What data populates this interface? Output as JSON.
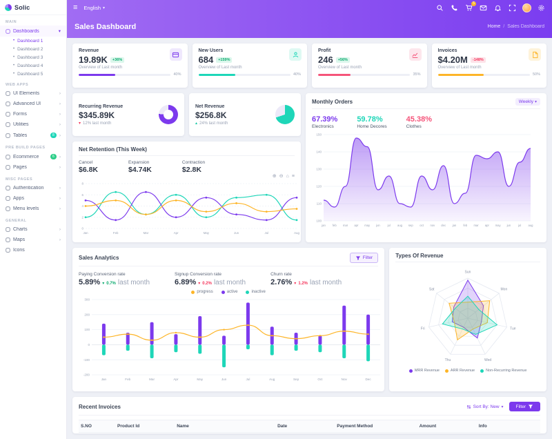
{
  "app": {
    "logo": "Solic"
  },
  "header": {
    "language": "English",
    "cart_badge": "5",
    "page_title": "Sales Dashboard",
    "breadcrumb_home": "Home",
    "breadcrumb_current": "Sales Dashboard"
  },
  "sidebar": {
    "groups": [
      {
        "heading": "MAIN",
        "items": [
          {
            "label": "Dashboards",
            "active": true,
            "expanded": true,
            "active_child": 0,
            "children": [
              "Dashboard 1",
              "Dashboard 2",
              "Dashboard 3",
              "Dashboard 4",
              "Dashboard 5"
            ]
          }
        ]
      },
      {
        "heading": "WEB APPS",
        "items": [
          {
            "label": "UI Elements"
          },
          {
            "label": "Advanced UI"
          },
          {
            "label": "Forms"
          },
          {
            "label": "Utilities"
          },
          {
            "label": "Tables",
            "badge": "8",
            "badge_color": "#1ed6b8"
          }
        ]
      },
      {
        "heading": "PRE BUILD PAGES",
        "items": [
          {
            "label": "Ecommerce",
            "badge": "6",
            "badge_color": "#2dce89"
          },
          {
            "label": "Pages"
          }
        ]
      },
      {
        "heading": "MISC PAGES",
        "items": [
          {
            "label": "Authentication"
          },
          {
            "label": "Apps"
          },
          {
            "label": "Menu levels"
          }
        ]
      },
      {
        "heading": "GENERAL",
        "items": [
          {
            "label": "Charts"
          },
          {
            "label": "Maps"
          },
          {
            "label": "Icons",
            "chevron": false
          }
        ]
      }
    ]
  },
  "stat_cards": [
    {
      "title": "Revenue",
      "value": "19.89K",
      "badge": "+36%",
      "badge_type": "success",
      "subtitle": "Overview of Last month",
      "progress": 40,
      "progress_label": "40%",
      "accent": "#7c3aed",
      "accent_bg": "#efe8fd",
      "icon": "revenue"
    },
    {
      "title": "New Users",
      "value": "684",
      "badge": "+159%",
      "badge_type": "success",
      "subtitle": "Overview of Last month",
      "progress": 40,
      "progress_label": "40%",
      "accent": "#1ed6b8",
      "accent_bg": "#def9f3",
      "icon": "users"
    },
    {
      "title": "Profit",
      "value": "246",
      "badge": "+56%",
      "badge_type": "success",
      "subtitle": "Overview of Last month",
      "progress": 35,
      "progress_label": "35%",
      "accent": "#f5547a",
      "accent_bg": "#fde6ec",
      "icon": "profit"
    },
    {
      "title": "Invoices",
      "value": "$4.20M",
      "badge": "-148%",
      "badge_type": "danger",
      "subtitle": "Overview of Last month",
      "progress": 50,
      "progress_label": "50%",
      "accent": "#fdb528",
      "accent_bg": "#fef3da",
      "icon": "invoice"
    }
  ],
  "revenue_cards": [
    {
      "title": "Recurring Revenue",
      "value": "$345.89K",
      "delta_dir": "down",
      "delta_color": "#f5365c",
      "delta_text": "12% last month",
      "percent": 76,
      "color": "#7c3aed",
      "hole": true
    },
    {
      "title": "Net Revenue",
      "value": "$256.8K",
      "delta_dir": "up",
      "delta_color": "#17c8a5",
      "delta_text": "24% last month",
      "percent": 70,
      "color": "#1ed6b8",
      "hole": false
    }
  ],
  "monthly_orders": {
    "title": "Monthly Orders",
    "range_label": "Weekly",
    "stats": [
      {
        "value": "67.39%",
        "label": "Electronics",
        "color": "#7c3aed"
      },
      {
        "value": "59.78%",
        "label": "Home Decores",
        "color": "#1ed6b8"
      },
      {
        "value": "45.38%",
        "label": "Clothes",
        "color": "#f5547a"
      }
    ],
    "chart_data": {
      "type": "area",
      "x": [
        "jan",
        "feb",
        "mar",
        "apr",
        "may",
        "jun",
        "jul",
        "aug",
        "sep",
        "oct",
        "nov",
        "dec",
        "jan",
        "feb",
        "mar",
        "apr",
        "may",
        "jun",
        "jul",
        "aug"
      ],
      "values": [
        112,
        108,
        120,
        148,
        143,
        118,
        126,
        110,
        108,
        126,
        118,
        132,
        110,
        116,
        138,
        136,
        140,
        120,
        134,
        142
      ],
      "ylim": [
        100,
        150
      ],
      "ticks": [
        100,
        110,
        120,
        130,
        140,
        150
      ],
      "color": "#7c3aed"
    }
  },
  "net_retention": {
    "title": "Net Retention (This Week)",
    "stats": [
      {
        "label": "Cancel",
        "value": "$6.8K"
      },
      {
        "label": "Expansion",
        "value": "$4.74K"
      },
      {
        "label": "Contraction",
        "value": "$2.8K"
      }
    ],
    "toolbar": [
      {
        "name": "zoom-in",
        "glyph": "⊕"
      },
      {
        "name": "zoom-out",
        "glyph": "⊖"
      },
      {
        "name": "home",
        "glyph": "⌂"
      },
      {
        "name": "menu",
        "glyph": "≡"
      }
    ],
    "chart_data": {
      "type": "line",
      "x": [
        "Jan",
        "Feb",
        "Mar",
        "Apr",
        "May",
        "Jun",
        "Jul",
        "Aug"
      ],
      "ylim": [
        0,
        8
      ],
      "ticks": [
        0,
        2,
        4,
        6,
        8
      ],
      "series": [
        {
          "name": "Cancel",
          "color": "#1ed6b8",
          "values": [
            2,
            6.5,
            2.5,
            6,
            2,
            5.5,
            6,
            1.5
          ]
        },
        {
          "name": "Expansion",
          "color": "#7c3aed",
          "values": [
            5,
            1.5,
            6.5,
            2,
            5.5,
            2.5,
            1.5,
            5.5
          ]
        },
        {
          "name": "Contraction",
          "color": "#fdb528",
          "values": [
            4,
            5,
            2.5,
            5,
            3,
            4.5,
            3,
            3.5
          ]
        }
      ]
    }
  },
  "sales_analytics": {
    "title": "Sales Analytics",
    "filter_label": "Filter",
    "stats": [
      {
        "label": "Paying Conversion rate",
        "value": "5.89%",
        "delta": "0.7%",
        "delta_color": "#0cab6f",
        "suffix": "last month"
      },
      {
        "label": "Signup Conversion rate",
        "value": "6.89%",
        "delta": "0.2%",
        "delta_color": "#f5365c",
        "suffix": "last month"
      },
      {
        "label": "Churn rate",
        "value": "2.76%",
        "delta": "1.2%",
        "delta_color": "#f5365c",
        "suffix": "last month"
      }
    ],
    "legend": [
      {
        "label": "progress",
        "color": "#fdb528"
      },
      {
        "label": "active",
        "color": "#7c3aed"
      },
      {
        "label": "inactive",
        "color": "#1ed6b8"
      }
    ],
    "chart_data": {
      "type": "bar-line",
      "categories": [
        "Jan",
        "Feb",
        "Mar",
        "Apr",
        "May",
        "Jun",
        "Jul",
        "Aug",
        "Sep",
        "Oct",
        "Nov",
        "Dec"
      ],
      "ylim": [
        -200,
        300
      ],
      "ticks": [
        -200,
        -100,
        0,
        100,
        200,
        300
      ],
      "series": [
        {
          "name": "active",
          "type": "bar",
          "color": "#7c3aed",
          "values": [
            140,
            80,
            150,
            70,
            190,
            60,
            280,
            120,
            80,
            60,
            260,
            200
          ]
        },
        {
          "name": "inactive",
          "type": "bar",
          "color": "#1ed6b8",
          "values": [
            -70,
            -40,
            -90,
            -50,
            -60,
            -150,
            -30,
            -70,
            -40,
            -50,
            -90,
            -110
          ]
        },
        {
          "name": "progress",
          "type": "line",
          "color": "#fdb528",
          "values": [
            50,
            70,
            30,
            80,
            50,
            100,
            130,
            60,
            40,
            60,
            90,
            70
          ]
        }
      ]
    }
  },
  "types_of_revenue": {
    "title": "Types Of Revenue",
    "chart_data": {
      "type": "radar",
      "axes": [
        "Sun",
        "Mon",
        "Tue",
        "Wed",
        "Thu",
        "Fri",
        "Sat"
      ],
      "max": 100,
      "series": [
        {
          "name": "MRR Revenue",
          "color": "#7c3aed",
          "values": [
            95,
            50,
            35,
            55,
            25,
            40,
            45
          ]
        },
        {
          "name": "ARR Revenue",
          "color": "#fdb528",
          "values": [
            40,
            70,
            50,
            30,
            60,
            35,
            60
          ]
        },
        {
          "name": "Non-Recurring Revenue",
          "color": "#1ed6b8",
          "values": [
            55,
            35,
            75,
            45,
            30,
            65,
            40
          ]
        }
      ]
    }
  },
  "recent_invoices": {
    "title": "Recent Invoices",
    "sort_label": "Sort By: New",
    "filter_label": "Filter",
    "columns": [
      "S.NO",
      "Product Id",
      "Name",
      "Date",
      "Payment Method",
      "Amount",
      "Info"
    ]
  }
}
